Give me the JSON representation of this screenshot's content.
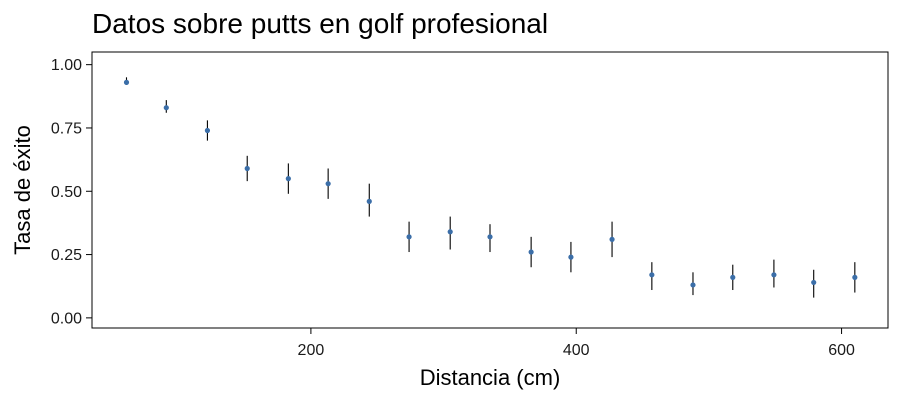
{
  "chart_data": {
    "type": "scatter",
    "title": "Datos sobre putts en golf profesional",
    "xlabel": "Distancia (cm)",
    "ylabel": "Tasa de éxito",
    "xlim": [
      35,
      635
    ],
    "ylim": [
      -0.04,
      1.05
    ],
    "x_ticks": [
      200,
      400,
      600
    ],
    "x_tick_labels": [
      "200",
      "400",
      "600"
    ],
    "y_ticks": [
      0.0,
      0.25,
      0.5,
      0.75,
      1.0
    ],
    "y_tick_labels": [
      "0.00",
      "0.25",
      "0.50",
      "0.75",
      "1.00"
    ],
    "grid": false,
    "point_color": "#3b6ea8",
    "errorbar_color": "#000000",
    "points": [
      {
        "x": 61,
        "y": 0.93,
        "lo": 0.92,
        "hi": 0.95
      },
      {
        "x": 91,
        "y": 0.83,
        "lo": 0.81,
        "hi": 0.86
      },
      {
        "x": 122,
        "y": 0.74,
        "lo": 0.7,
        "hi": 0.78
      },
      {
        "x": 152,
        "y": 0.59,
        "lo": 0.54,
        "hi": 0.64
      },
      {
        "x": 183,
        "y": 0.55,
        "lo": 0.49,
        "hi": 0.61
      },
      {
        "x": 213,
        "y": 0.53,
        "lo": 0.47,
        "hi": 0.59
      },
      {
        "x": 244,
        "y": 0.46,
        "lo": 0.4,
        "hi": 0.53
      },
      {
        "x": 274,
        "y": 0.32,
        "lo": 0.26,
        "hi": 0.38
      },
      {
        "x": 305,
        "y": 0.34,
        "lo": 0.27,
        "hi": 0.4
      },
      {
        "x": 335,
        "y": 0.32,
        "lo": 0.26,
        "hi": 0.37
      },
      {
        "x": 366,
        "y": 0.26,
        "lo": 0.2,
        "hi": 0.32
      },
      {
        "x": 396,
        "y": 0.24,
        "lo": 0.18,
        "hi": 0.3
      },
      {
        "x": 427,
        "y": 0.31,
        "lo": 0.24,
        "hi": 0.38
      },
      {
        "x": 457,
        "y": 0.17,
        "lo": 0.11,
        "hi": 0.22
      },
      {
        "x": 488,
        "y": 0.13,
        "lo": 0.09,
        "hi": 0.18
      },
      {
        "x": 518,
        "y": 0.16,
        "lo": 0.11,
        "hi": 0.21
      },
      {
        "x": 549,
        "y": 0.17,
        "lo": 0.12,
        "hi": 0.23
      },
      {
        "x": 579,
        "y": 0.14,
        "lo": 0.08,
        "hi": 0.19
      },
      {
        "x": 610,
        "y": 0.16,
        "lo": 0.1,
        "hi": 0.22
      }
    ]
  }
}
